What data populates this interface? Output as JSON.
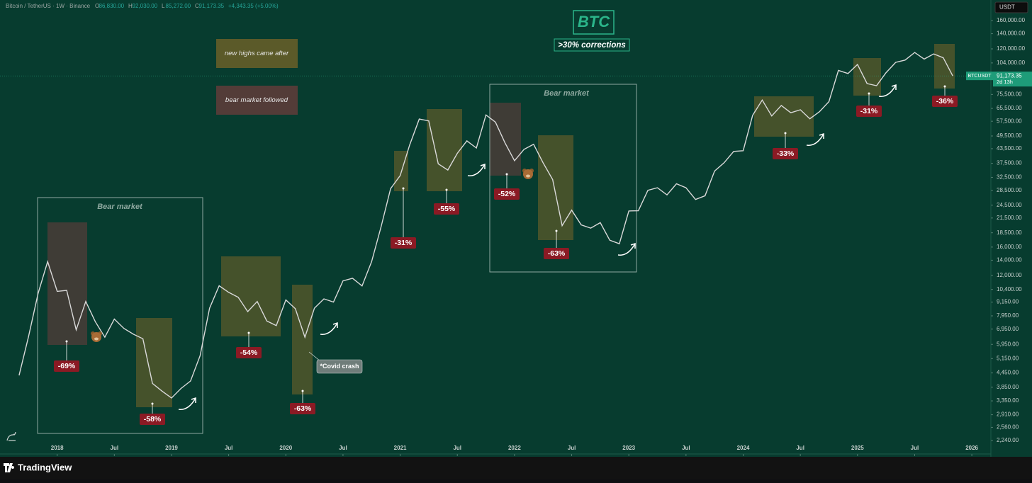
{
  "header": {
    "symbol": "Bitcoin / TetherUS · 1W · Binance",
    "ohlc": [
      {
        "key": "O",
        "value": "86,830.00"
      },
      {
        "key": "H",
        "value": "92,030.00"
      },
      {
        "key": "L",
        "value": "85,272.00"
      },
      {
        "key": "C",
        "value": "91,173.35"
      }
    ],
    "change": "+4,343.35 (+5.00%)"
  },
  "currency": "USDT",
  "price_tag": {
    "symbol": "BTCUSDT",
    "price": {
      "value": 91173.35,
      "label": "91,173.35"
    },
    "countdown": "2d 13h"
  },
  "footer": {
    "brand": "TradingView"
  },
  "chart_data": {
    "type": "line",
    "title": "BTC",
    "subtitle": ">30% corrections",
    "legend": [
      "new highs came after",
      "bear market followed"
    ],
    "annotations": {
      "bear_market": [
        "Bear market",
        "Bear market"
      ],
      "covid": "*Covid crash",
      "corrections": [
        "-69%",
        "-58%",
        "-54%",
        "-63%",
        "-31%",
        "-55%",
        "-52%",
        "-63%",
        "-33%",
        "-31%",
        "-36%"
      ]
    },
    "log_scale": true,
    "grid": false,
    "color": "#d9d9d9",
    "x": [
      "2017-09",
      "2017-10",
      "2017-11",
      "2017-12",
      "2018-01",
      "2018-02",
      "2018-03",
      "2018-04",
      "2018-05",
      "2018-06",
      "2018-07",
      "2018-08",
      "2018-09",
      "2018-10",
      "2018-11",
      "2018-12",
      "2019-01",
      "2019-02",
      "2019-03",
      "2019-04",
      "2019-05",
      "2019-06",
      "2019-07",
      "2019-08",
      "2019-09",
      "2019-10",
      "2019-11",
      "2019-12",
      "2020-01",
      "2020-02",
      "2020-03",
      "2020-04",
      "2020-05",
      "2020-06",
      "2020-07",
      "2020-08",
      "2020-09",
      "2020-10",
      "2020-11",
      "2020-12",
      "2021-01",
      "2021-02",
      "2021-03",
      "2021-04",
      "2021-05",
      "2021-06",
      "2021-07",
      "2021-08",
      "2021-09",
      "2021-10",
      "2021-11",
      "2021-12",
      "2022-01",
      "2022-02",
      "2022-03",
      "2022-04",
      "2022-05",
      "2022-06",
      "2022-07",
      "2022-08",
      "2022-09",
      "2022-10",
      "2022-11",
      "2022-12",
      "2023-01",
      "2023-02",
      "2023-03",
      "2023-04",
      "2023-05",
      "2023-06",
      "2023-07",
      "2023-08",
      "2023-09",
      "2023-10",
      "2023-11",
      "2023-12",
      "2024-01",
      "2024-02",
      "2024-03",
      "2024-04",
      "2024-05",
      "2024-06",
      "2024-07",
      "2024-08",
      "2024-09",
      "2024-10",
      "2024-11",
      "2024-12",
      "2025-01",
      "2025-02",
      "2025-03",
      "2025-04",
      "2025-05",
      "2025-06",
      "2025-07",
      "2025-08",
      "2025-09",
      "2025-10",
      "2025-11"
    ],
    "values": [
      4340,
      6450,
      10000,
      13800,
      10200,
      10300,
      6900,
      9200,
      7500,
      6400,
      7700,
      7000,
      6600,
      6300,
      4000,
      3700,
      3450,
      3800,
      4100,
      5300,
      8600,
      10800,
      10100,
      9600,
      8300,
      9200,
      7550,
      7200,
      9350,
      8550,
      6400,
      8600,
      9450,
      9150,
      11350,
      11650,
      10780,
      13800,
      19700,
      29000,
      33100,
      45200,
      58800,
      57700,
      37300,
      35000,
      41500,
      47100,
      43800,
      61300,
      57000,
      46200,
      38500,
      43200,
      45500,
      37700,
      31800,
      19900,
      23300,
      20050,
      19400,
      20500,
      17150,
      16550,
      23100,
      23150,
      28500,
      29250,
      27200,
      30450,
      29250,
      25950,
      26950,
      34650,
      37700,
      42300,
      42600,
      61100,
      71300,
      60700,
      67500,
      62700,
      64600,
      58950,
      63300,
      70200,
      96400,
      93400,
      102400,
      84300,
      82500,
      94200,
      104600,
      107100,
      115700,
      108200,
      114000,
      109600,
      91173.35
    ],
    "xlim": [
      "2017-07",
      "2026-03"
    ],
    "xticks": [
      {
        "value": "2018-01",
        "label": "2018"
      },
      {
        "value": "2018-07",
        "label": "Jul"
      },
      {
        "value": "2019-01",
        "label": "2019"
      },
      {
        "value": "2019-07",
        "label": "Jul"
      },
      {
        "value": "2020-01",
        "label": "2020"
      },
      {
        "value": "2020-07",
        "label": "Jul"
      },
      {
        "value": "2021-01",
        "label": "2021"
      },
      {
        "value": "2021-07",
        "label": "Jul"
      },
      {
        "value": "2022-01",
        "label": "2022"
      },
      {
        "value": "2022-07",
        "label": "Jul"
      },
      {
        "value": "2023-01",
        "label": "2023"
      },
      {
        "value": "2023-07",
        "label": "Jul"
      },
      {
        "value": "2024-01",
        "label": "2024"
      },
      {
        "value": "2024-07",
        "label": "Jul"
      },
      {
        "value": "2025-01",
        "label": "2025"
      },
      {
        "value": "2025-07",
        "label": "Jul"
      },
      {
        "value": "2026-01",
        "label": "2026"
      }
    ],
    "ylim": [
      1953,
      197200
    ],
    "yticks": [
      {
        "value": 2240,
        "label": "2,240.00"
      },
      {
        "value": 2560,
        "label": "2,560.00"
      },
      {
        "value": 2910,
        "label": "2,910.00"
      },
      {
        "value": 3350,
        "label": "3,350.00"
      },
      {
        "value": 3850,
        "label": "3,850.00"
      },
      {
        "value": 4450,
        "label": "4,450.00"
      },
      {
        "value": 5150,
        "label": "5,150.00"
      },
      {
        "value": 5950,
        "label": "5,950.00"
      },
      {
        "value": 6950,
        "label": "6,950.00"
      },
      {
        "value": 7950,
        "label": "7,950.00"
      },
      {
        "value": 9150,
        "label": "9,150.00"
      },
      {
        "value": 10400,
        "label": "10,400.00"
      },
      {
        "value": 12000,
        "label": "12,000.00"
      },
      {
        "value": 14000,
        "label": "14,000.00"
      },
      {
        "value": 16000,
        "label": "16,000.00"
      },
      {
        "value": 18500,
        "label": "18,500.00"
      },
      {
        "value": 21500,
        "label": "21,500.00"
      },
      {
        "value": 24500,
        "label": "24,500.00"
      },
      {
        "value": 28500,
        "label": "28,500.00"
      },
      {
        "value": 32500,
        "label": "32,500.00"
      },
      {
        "value": 37500,
        "label": "37,500.00"
      },
      {
        "value": 43500,
        "label": "43,500.00"
      },
      {
        "value": 49500,
        "label": "49,500.00"
      },
      {
        "value": 57500,
        "label": "57,500.00"
      },
      {
        "value": 65500,
        "label": "65,500.00"
      },
      {
        "value": 75500,
        "label": "75,500.00"
      },
      {
        "value": 104000,
        "label": "104,000.00"
      },
      {
        "value": 120000,
        "label": "120,000.00"
      },
      {
        "value": 140000,
        "label": "140,000.00"
      },
      {
        "value": 160000,
        "label": "160,000.00"
      }
    ]
  }
}
